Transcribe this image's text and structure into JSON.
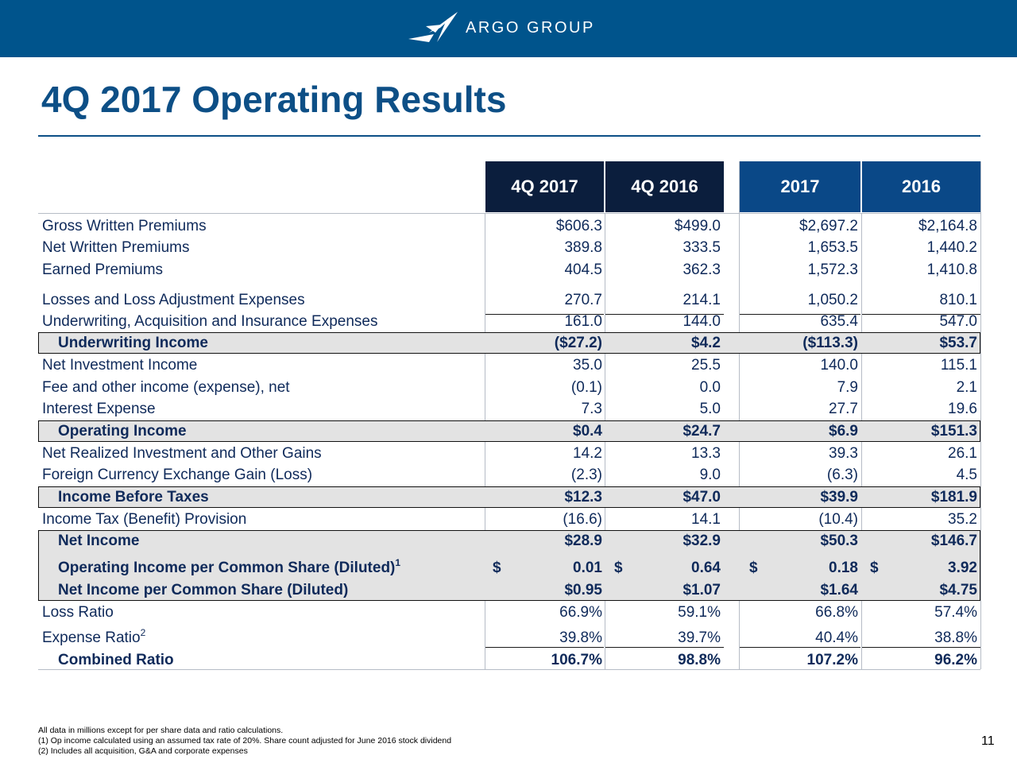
{
  "header": {
    "brand": "ARGO GROUP"
  },
  "title": "4Q 2017 Operating Results",
  "columns": [
    "4Q 2017",
    "4Q 2016",
    "2017",
    "2016"
  ],
  "rows": [
    {
      "label": "Gross Written Premiums",
      "values": [
        "$606.3",
        "$499.0",
        "$2,697.2",
        "$2,164.8"
      ]
    },
    {
      "label": "Net Written Premiums",
      "values": [
        "389.8",
        "333.5",
        "1,653.5",
        "1,440.2"
      ]
    },
    {
      "label": "Earned Premiums",
      "values": [
        "404.5",
        "362.3",
        "1,572.3",
        "1,410.8"
      ]
    },
    {
      "label": "Losses and Loss Adjustment Expenses",
      "values": [
        "270.7",
        "214.1",
        "1,050.2",
        "810.1"
      ]
    },
    {
      "label": "Underwriting, Acquisition and Insurance Expenses",
      "values": [
        "161.0",
        "144.0",
        "635.4",
        "547.0"
      ]
    },
    {
      "label": "Underwriting Income",
      "values": [
        "($27.2)",
        "$4.2",
        "($113.3)",
        "$53.7"
      ]
    },
    {
      "label": "Net Investment Income",
      "values": [
        "35.0",
        "25.5",
        "140.0",
        "115.1"
      ]
    },
    {
      "label": "Fee and other income (expense), net",
      "values": [
        "(0.1)",
        "0.0",
        "7.9",
        "2.1"
      ]
    },
    {
      "label": "Interest Expense",
      "values": [
        "7.3",
        "5.0",
        "27.7",
        "19.6"
      ]
    },
    {
      "label": "Operating Income",
      "values": [
        "$0.4",
        "$24.7",
        "$6.9",
        "$151.3"
      ]
    },
    {
      "label": "Net Realized Investment and Other Gains",
      "values": [
        "14.2",
        "13.3",
        "39.3",
        "26.1"
      ]
    },
    {
      "label": "Foreign Currency Exchange Gain (Loss)",
      "values": [
        "(2.3)",
        "9.0",
        "(6.3)",
        "4.5"
      ]
    },
    {
      "label": "Income Before Taxes",
      "values": [
        "$12.3",
        "$47.0",
        "$39.9",
        "$181.9"
      ]
    },
    {
      "label": "Income Tax (Benefit) Provision",
      "values": [
        "(16.6)",
        "14.1",
        "(10.4)",
        "35.2"
      ]
    },
    {
      "label": "Net Income",
      "values": [
        "$28.9",
        "$32.9",
        "$50.3",
        "$146.7"
      ]
    },
    {
      "label": "Operating Income per Common Share (Diluted)",
      "sup": "1",
      "currency": "$",
      "values": [
        "0.01",
        "0.64",
        "0.18",
        "3.92"
      ]
    },
    {
      "label": "Net Income per Common Share (Diluted)",
      "values": [
        "$0.95",
        "$1.07",
        "$1.64",
        "$4.75"
      ]
    },
    {
      "label": "Loss Ratio",
      "values": [
        "66.9%",
        "59.1%",
        "66.8%",
        "57.4%"
      ]
    },
    {
      "label": "Expense Ratio",
      "sup": "2",
      "values": [
        "39.8%",
        "39.7%",
        "40.4%",
        "38.8%"
      ]
    },
    {
      "label": "Combined Ratio",
      "values": [
        "106.7%",
        "98.8%",
        "107.2%",
        "96.2%"
      ]
    }
  ],
  "footnotes": [
    "All data in millions except for per share data and ratio calculations.",
    "(1)  Op income calculated using an assumed tax rate of 20%. Share count adjusted for June 2016 stock dividend",
    "(2)  Includes all acquisition, G&A and corporate expenses"
  ],
  "page_number": "11",
  "colors": {
    "banner": "#00548c",
    "title": "#0d4f86",
    "header_dark": "#0b1e3d",
    "header_blue": "#0a4887",
    "highlight": "#e3e3e3"
  }
}
